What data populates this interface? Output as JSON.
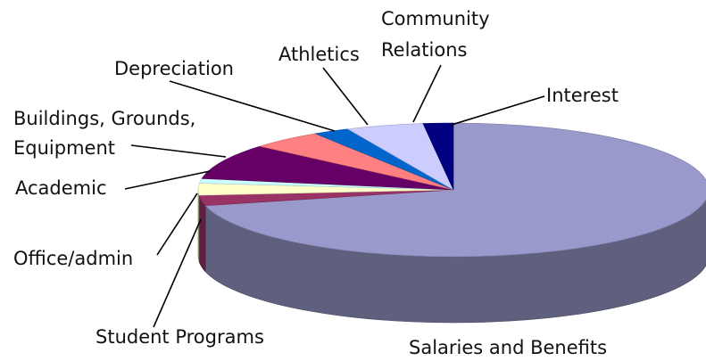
{
  "chart_data": {
    "type": "pie",
    "title": "",
    "labels": [
      "Salaries and Benefits",
      "Student Programs",
      "Office/admin",
      "Academic",
      "Buildings, Grounds, Equipment",
      "Depreciation",
      "Athletics",
      "Community Relations",
      "Interest"
    ],
    "values": [
      71.2,
      2.5,
      2.9,
      1.1,
      8.6,
      4.6,
      2.3,
      4.9,
      1.9
    ],
    "colors": [
      "#9999cc",
      "#993366",
      "#ffffcc",
      "#ccffff",
      "#660066",
      "#ff8080",
      "#0066cc",
      "#ccccff",
      "#000080"
    ],
    "label_lines": {
      "Buildings, Grounds, Equipment": [
        "Buildings, Grounds,",
        "Equipment"
      ],
      "Community Relations": [
        "Community",
        "Relations"
      ]
    }
  }
}
